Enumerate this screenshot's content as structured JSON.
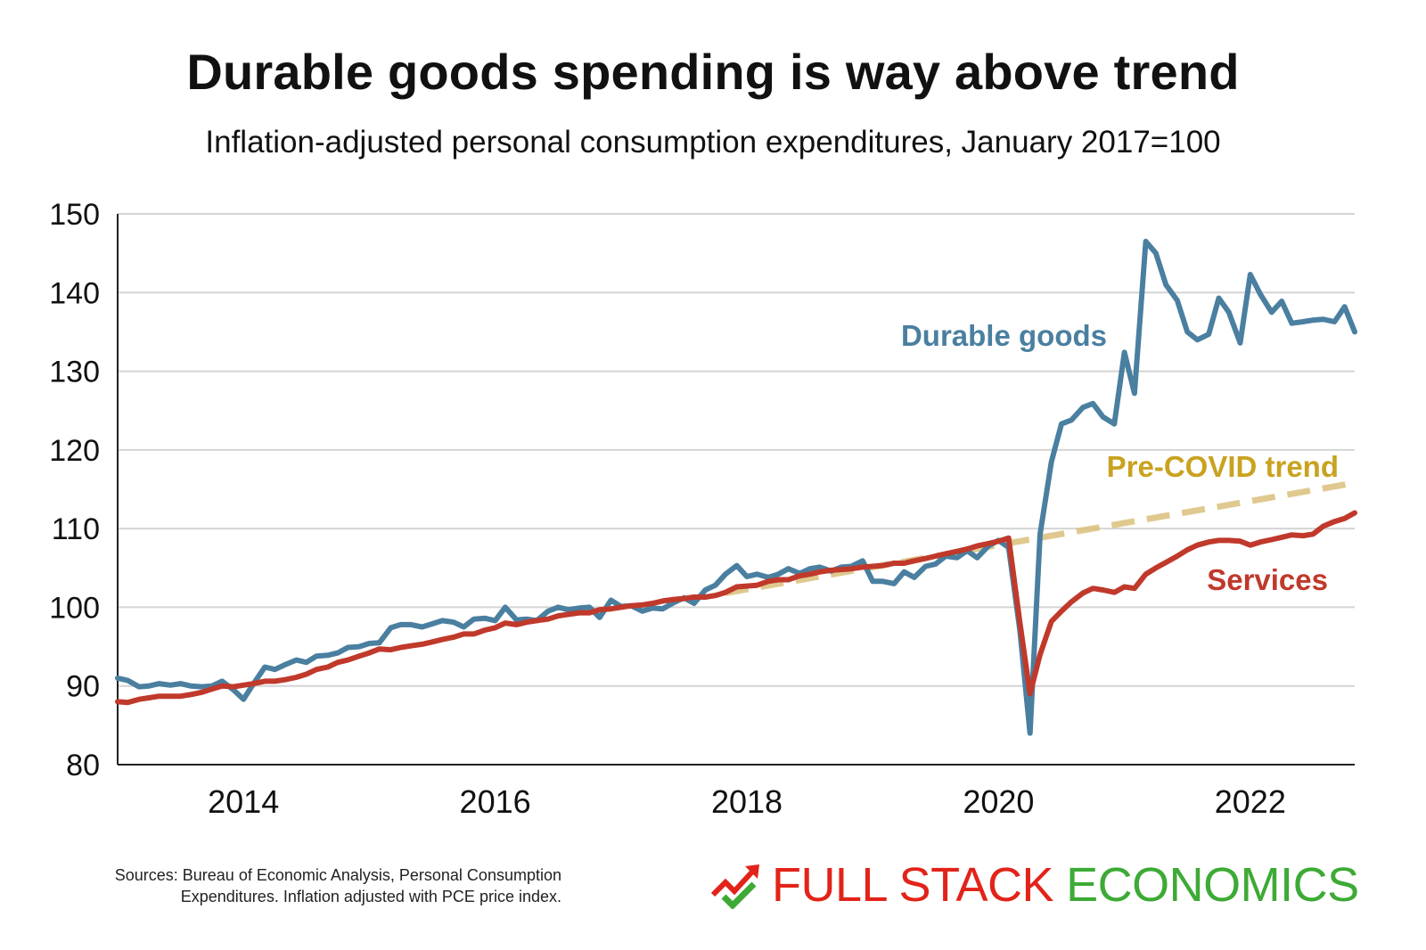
{
  "chart_data": {
    "type": "line",
    "title": "Durable goods spending is way above trend",
    "subtitle": "Inflation-adjusted personal consumption expenditures, January 2017=100",
    "ylim": [
      80,
      150
    ],
    "yticks": [
      80,
      90,
      100,
      110,
      120,
      130,
      140,
      150
    ],
    "xlim": [
      2013.0,
      2022.83
    ],
    "xticks": [
      2014,
      2016,
      2018,
      2020,
      2022
    ],
    "grid": "horizontal",
    "series": [
      {
        "name": "Durable goods",
        "color": "#4a7fa0",
        "x": [
          2013.0,
          2013.08,
          2013.17,
          2013.25,
          2013.33,
          2013.42,
          2013.5,
          2013.58,
          2013.67,
          2013.75,
          2013.83,
          2013.92,
          2014.0,
          2014.08,
          2014.17,
          2014.25,
          2014.33,
          2014.42,
          2014.5,
          2014.58,
          2014.67,
          2014.75,
          2014.83,
          2014.92,
          2015.0,
          2015.08,
          2015.17,
          2015.25,
          2015.33,
          2015.42,
          2015.5,
          2015.58,
          2015.67,
          2015.75,
          2015.83,
          2015.92,
          2016.0,
          2016.08,
          2016.17,
          2016.25,
          2016.33,
          2016.42,
          2016.5,
          2016.58,
          2016.67,
          2016.75,
          2016.83,
          2016.92,
          2017.0,
          2017.08,
          2017.17,
          2017.25,
          2017.33,
          2017.42,
          2017.5,
          2017.58,
          2017.67,
          2017.75,
          2017.83,
          2017.92,
          2018.0,
          2018.08,
          2018.17,
          2018.25,
          2018.33,
          2018.42,
          2018.5,
          2018.58,
          2018.67,
          2018.75,
          2018.83,
          2018.92,
          2019.0,
          2019.08,
          2019.17,
          2019.25,
          2019.33,
          2019.42,
          2019.5,
          2019.58,
          2019.67,
          2019.75,
          2019.83,
          2019.92,
          2020.0,
          2020.08,
          2020.17,
          2020.25,
          2020.33,
          2020.42,
          2020.5,
          2020.58,
          2020.67,
          2020.75,
          2020.83,
          2020.92,
          2021.0,
          2021.08,
          2021.17,
          2021.25,
          2021.33,
          2021.42,
          2021.5,
          2021.58,
          2021.67,
          2021.75,
          2021.83,
          2021.92,
          2022.0,
          2022.08,
          2022.17,
          2022.25,
          2022.33,
          2022.42,
          2022.5,
          2022.58,
          2022.67,
          2022.75,
          2022.83
        ],
        "values": [
          91,
          90.7,
          89.9,
          90,
          90.3,
          90.1,
          90.3,
          90,
          89.9,
          90,
          90.6,
          89.5,
          88.3,
          90.3,
          92.4,
          92.1,
          92.7,
          93.3,
          93,
          93.8,
          93.9,
          94.2,
          94.9,
          95,
          95.4,
          95.5,
          97.4,
          97.8,
          97.8,
          97.5,
          97.9,
          98.3,
          98.1,
          97.5,
          98.5,
          98.6,
          98.3,
          100,
          98.4,
          98.5,
          98.3,
          99.5,
          100,
          99.7,
          99.9,
          100,
          98.7,
          100.9,
          100.1,
          100.2,
          99.5,
          99.9,
          99.8,
          100.6,
          101.2,
          100.5,
          102.2,
          102.8,
          104.2,
          105.3,
          103.9,
          104.2,
          103.8,
          104.2,
          104.9,
          104.3,
          104.9,
          105.1,
          104.6,
          105.1,
          105.2,
          105.9,
          103.3,
          103.3,
          103,
          104.5,
          103.8,
          105.2,
          105.5,
          106.5,
          106.3,
          107.2,
          106.3,
          107.8,
          108.5,
          107.6,
          97,
          84,
          109.3,
          118.5,
          123.3,
          123.8,
          125.4,
          125.9,
          124.2,
          123.3,
          132.4,
          127.2,
          146.5,
          145,
          141,
          139,
          135,
          134,
          134.7,
          139.3,
          137.5,
          133.6,
          142.3,
          139.8,
          137.5,
          138.9,
          136.1,
          136.3,
          136.5,
          136.6,
          136.3,
          138.2,
          135
        ],
        "label": "Durable goods"
      },
      {
        "name": "Services",
        "color": "#c0392b",
        "x": [
          2013.0,
          2013.08,
          2013.17,
          2013.25,
          2013.33,
          2013.42,
          2013.5,
          2013.58,
          2013.67,
          2013.75,
          2013.83,
          2013.92,
          2014.0,
          2014.08,
          2014.17,
          2014.25,
          2014.33,
          2014.42,
          2014.5,
          2014.58,
          2014.67,
          2014.75,
          2014.83,
          2014.92,
          2015.0,
          2015.08,
          2015.17,
          2015.25,
          2015.33,
          2015.42,
          2015.5,
          2015.58,
          2015.67,
          2015.75,
          2015.83,
          2015.92,
          2016.0,
          2016.08,
          2016.17,
          2016.25,
          2016.33,
          2016.42,
          2016.5,
          2016.58,
          2016.67,
          2016.75,
          2016.83,
          2016.92,
          2017.0,
          2017.08,
          2017.17,
          2017.25,
          2017.33,
          2017.42,
          2017.5,
          2017.58,
          2017.67,
          2017.75,
          2017.83,
          2017.92,
          2018.0,
          2018.08,
          2018.17,
          2018.25,
          2018.33,
          2018.42,
          2018.5,
          2018.58,
          2018.67,
          2018.75,
          2018.83,
          2018.92,
          2019.0,
          2019.08,
          2019.17,
          2019.25,
          2019.33,
          2019.42,
          2019.5,
          2019.58,
          2019.67,
          2019.75,
          2019.83,
          2019.92,
          2020.0,
          2020.08,
          2020.17,
          2020.25,
          2020.33,
          2020.42,
          2020.5,
          2020.58,
          2020.67,
          2020.75,
          2020.83,
          2020.92,
          2021.0,
          2021.08,
          2021.17,
          2021.25,
          2021.33,
          2021.42,
          2021.5,
          2021.58,
          2021.67,
          2021.75,
          2021.83,
          2021.92,
          2022.0,
          2022.08,
          2022.17,
          2022.25,
          2022.33,
          2022.42,
          2022.5,
          2022.58,
          2022.67,
          2022.75,
          2022.83
        ],
        "values": [
          88,
          87.9,
          88.3,
          88.5,
          88.7,
          88.7,
          88.7,
          88.9,
          89.2,
          89.6,
          90,
          89.9,
          90.1,
          90.3,
          90.6,
          90.6,
          90.8,
          91.1,
          91.5,
          92.1,
          92.4,
          93,
          93.3,
          93.8,
          94.2,
          94.7,
          94.6,
          94.9,
          95.1,
          95.3,
          95.6,
          95.9,
          96.2,
          96.6,
          96.6,
          97.1,
          97.4,
          98,
          97.8,
          98.1,
          98.3,
          98.5,
          98.9,
          99.1,
          99.3,
          99.3,
          99.7,
          99.8,
          100,
          100.2,
          100.3,
          100.5,
          100.8,
          101,
          101.1,
          101.3,
          101.3,
          101.5,
          101.9,
          102.6,
          102.7,
          102.8,
          103.3,
          103.5,
          103.5,
          104,
          104.2,
          104.5,
          104.7,
          104.8,
          104.9,
          105.1,
          105.2,
          105.3,
          105.6,
          105.6,
          105.9,
          106.2,
          106.5,
          106.8,
          107.1,
          107.4,
          107.8,
          108.1,
          108.4,
          108.8,
          98,
          89,
          94,
          98.2,
          99.5,
          100.7,
          101.8,
          102.4,
          102.2,
          101.9,
          102.6,
          102.4,
          104.2,
          105,
          105.7,
          106.5,
          107.3,
          107.9,
          108.3,
          108.5,
          108.5,
          108.4,
          107.9,
          108.3,
          108.6,
          108.9,
          109.2,
          109.1,
          109.3,
          110.3,
          110.9,
          111.3,
          112
        ],
        "label": "Services"
      },
      {
        "name": "Pre-COVID trend",
        "color": "#d9c07a",
        "dashed": true,
        "x": [
          2017.83,
          2020.17,
          2022.83
        ],
        "values": [
          101.8,
          108.4,
          115.8
        ],
        "label": "Pre-COVID trend"
      }
    ]
  },
  "sources": {
    "line1": "Sources: Bureau of Economic Analysis, Personal Consumption",
    "line2": "Expenditures. Inflation adjusted with PCE price index."
  },
  "brand": {
    "part1": "FULL STACK",
    "part2": "ECONOMICS",
    "icon": "chart-arrow-check-icon",
    "color_red": "#e2231a",
    "color_green": "#3daa35"
  }
}
